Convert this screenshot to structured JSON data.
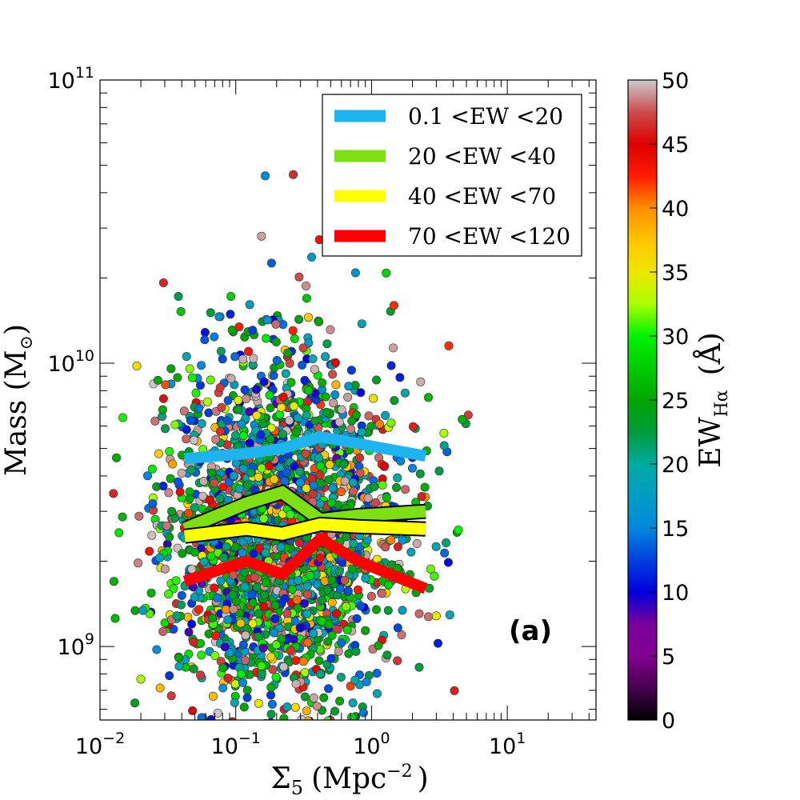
{
  "chart_data": {
    "type": "scatter",
    "panel_label": "(a)",
    "xlabel": {
      "main": "Σ",
      "sub": "5",
      "unit": "(Mpc",
      "exp": "−2",
      "close": ")"
    },
    "ylabel": {
      "main": "Mass (M",
      "sub": "⊙",
      "close": ")"
    },
    "xscale": "log",
    "yscale": "log",
    "xlim": [
      0.01,
      45
    ],
    "ylim": [
      550000000,
      100000000000
    ],
    "x_ticks": [
      {
        "value": 0.01,
        "base": "10",
        "exp": "−2"
      },
      {
        "value": 0.1,
        "base": "10",
        "exp": "−1"
      },
      {
        "value": 1,
        "base": "10",
        "exp": "0"
      },
      {
        "value": 10,
        "base": "10",
        "exp": "1"
      }
    ],
    "y_ticks": [
      {
        "value": 1000000000,
        "base": "10",
        "exp": "9"
      },
      {
        "value": 10000000000,
        "base": "10",
        "exp": "10"
      },
      {
        "value": 100000000000,
        "base": "10",
        "exp": "11"
      }
    ],
    "colorbar": {
      "label": "EW",
      "label_sub": "Hα",
      "unit": "(Å)",
      "min": 0,
      "max": 50,
      "ticks": [
        "0",
        "5",
        "10",
        "15",
        "20",
        "25",
        "30",
        "35",
        "40",
        "45",
        "50"
      ],
      "colormap": "nipy_spectral"
    },
    "scatter": {
      "n_points": 2400,
      "description": "individual galaxies, colour = EW(Hα)"
    },
    "series": [
      {
        "name": "0.1 <EW <20",
        "color": "#1eb4f0",
        "outline": false,
        "x": [
          0.042,
          0.12,
          0.22,
          0.42,
          0.8,
          2.5
        ],
        "y": [
          4600000000,
          4800000000,
          5000000000,
          5500000000,
          5200000000,
          4700000000
        ]
      },
      {
        "name": "20 <EW <40",
        "color": "#7ee012",
        "outline": true,
        "x": [
          0.042,
          0.12,
          0.22,
          0.42,
          0.8,
          2.5
        ],
        "y": [
          2600000000,
          3200000000,
          3500000000,
          2800000000,
          2900000000,
          3000000000
        ]
      },
      {
        "name": "40 <EW <70",
        "color": "#ffff00",
        "outline": true,
        "x": [
          0.042,
          0.12,
          0.22,
          0.42,
          0.8,
          2.5
        ],
        "y": [
          2450000000,
          2600000000,
          2500000000,
          2700000000,
          2650000000,
          2600000000
        ]
      },
      {
        "name": "70 <EW <120",
        "color": "#ff0000",
        "outline": false,
        "x": [
          0.042,
          0.12,
          0.22,
          0.42,
          0.8,
          2.5
        ],
        "y": [
          1700000000,
          2000000000,
          1800000000,
          2400000000,
          2000000000,
          1600000000
        ]
      }
    ],
    "legend_location": "top-right"
  }
}
